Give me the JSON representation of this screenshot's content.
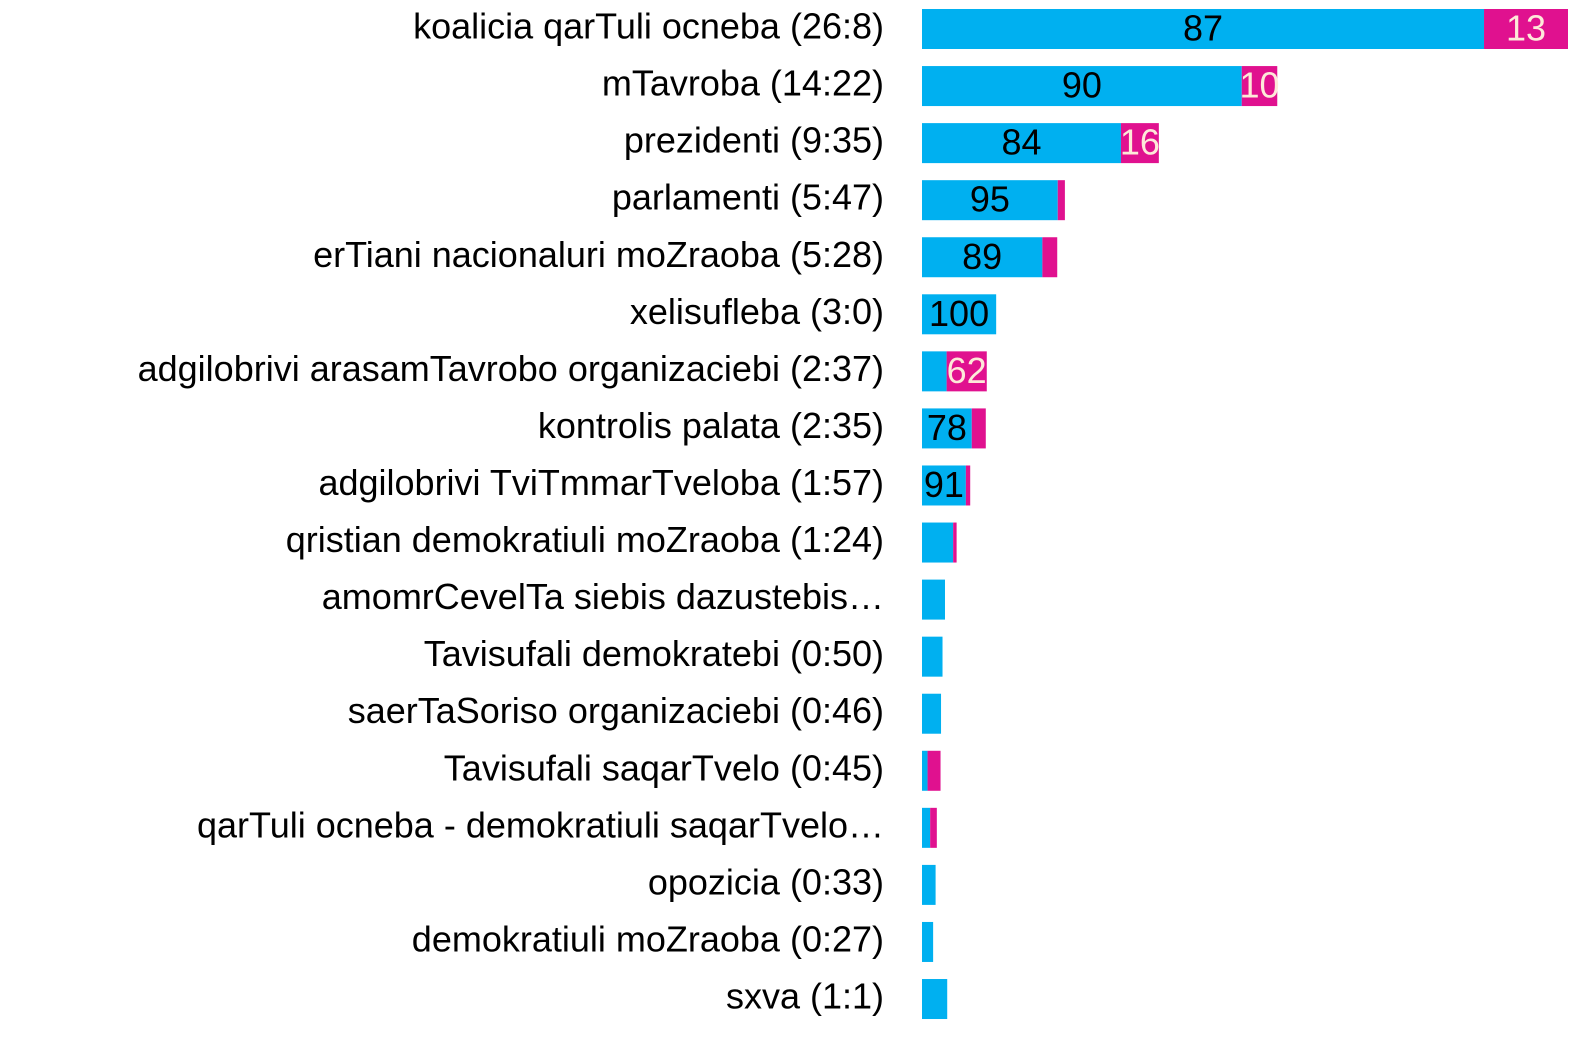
{
  "chart_data": {
    "type": "stacked-barh",
    "categories": [
      "koalicia qarTuli ocneba (26:8)",
      "mTavroba (14:22)",
      "prezidenti (9:35)",
      "parlamenti (5:47)",
      "erTiani nacionaluri moZraoba (5:28)",
      "xelisufleba (3:0)",
      "adgilobrivi arasamTavrobo organizaciebi (2:37)",
      "kontrolis palata (2:35)",
      "adgilobrivi TviTmmarTveloba (1:57)",
      "qristian demokratiuli moZraoba (1:24)",
      "amomrCevelTa siebis dazustebis…",
      "Tavisufali demokratebi (0:50)",
      "saerTaSoriso organizaciebi (0:46)",
      "Tavisufali saqarTvelo (0:45)",
      "qarTuli ocneba - demokratiuli saqarTvelo…",
      "opozicia (0:33)",
      "demokratiuli moZraoba (0:27)",
      "sxva (1:1)"
    ],
    "durations": [
      26.13,
      14.37,
      9.58,
      5.78,
      5.47,
      3,
      2.62,
      2.58,
      1.95,
      1.4,
      0.93,
      0.83,
      0.77,
      0.75,
      0.6,
      0.55,
      0.45,
      1.02
    ],
    "series": [
      {
        "color": "#00b0f0",
        "label_color": "#000000",
        "values": [
          87,
          90,
          84,
          95,
          89,
          100,
          38,
          78,
          91,
          90,
          100,
          100,
          100,
          30,
          55,
          100,
          100,
          100
        ],
        "value_labels": [
          "87",
          "90",
          "84",
          "95",
          "89",
          "100",
          null,
          "78",
          "91",
          null,
          null,
          null,
          null,
          null,
          null,
          null,
          null,
          null
        ]
      },
      {
        "color": "#e0118f",
        "label_color": "#fde9d9",
        "values": [
          13,
          10,
          16,
          5,
          11,
          0,
          62,
          22,
          9,
          10,
          0,
          0,
          0,
          70,
          45,
          0,
          0,
          0
        ],
        "value_labels": [
          "13",
          "10",
          "16",
          null,
          null,
          null,
          "62",
          null,
          null,
          null,
          null,
          null,
          null,
          null,
          null,
          null,
          null,
          null
        ]
      }
    ]
  }
}
